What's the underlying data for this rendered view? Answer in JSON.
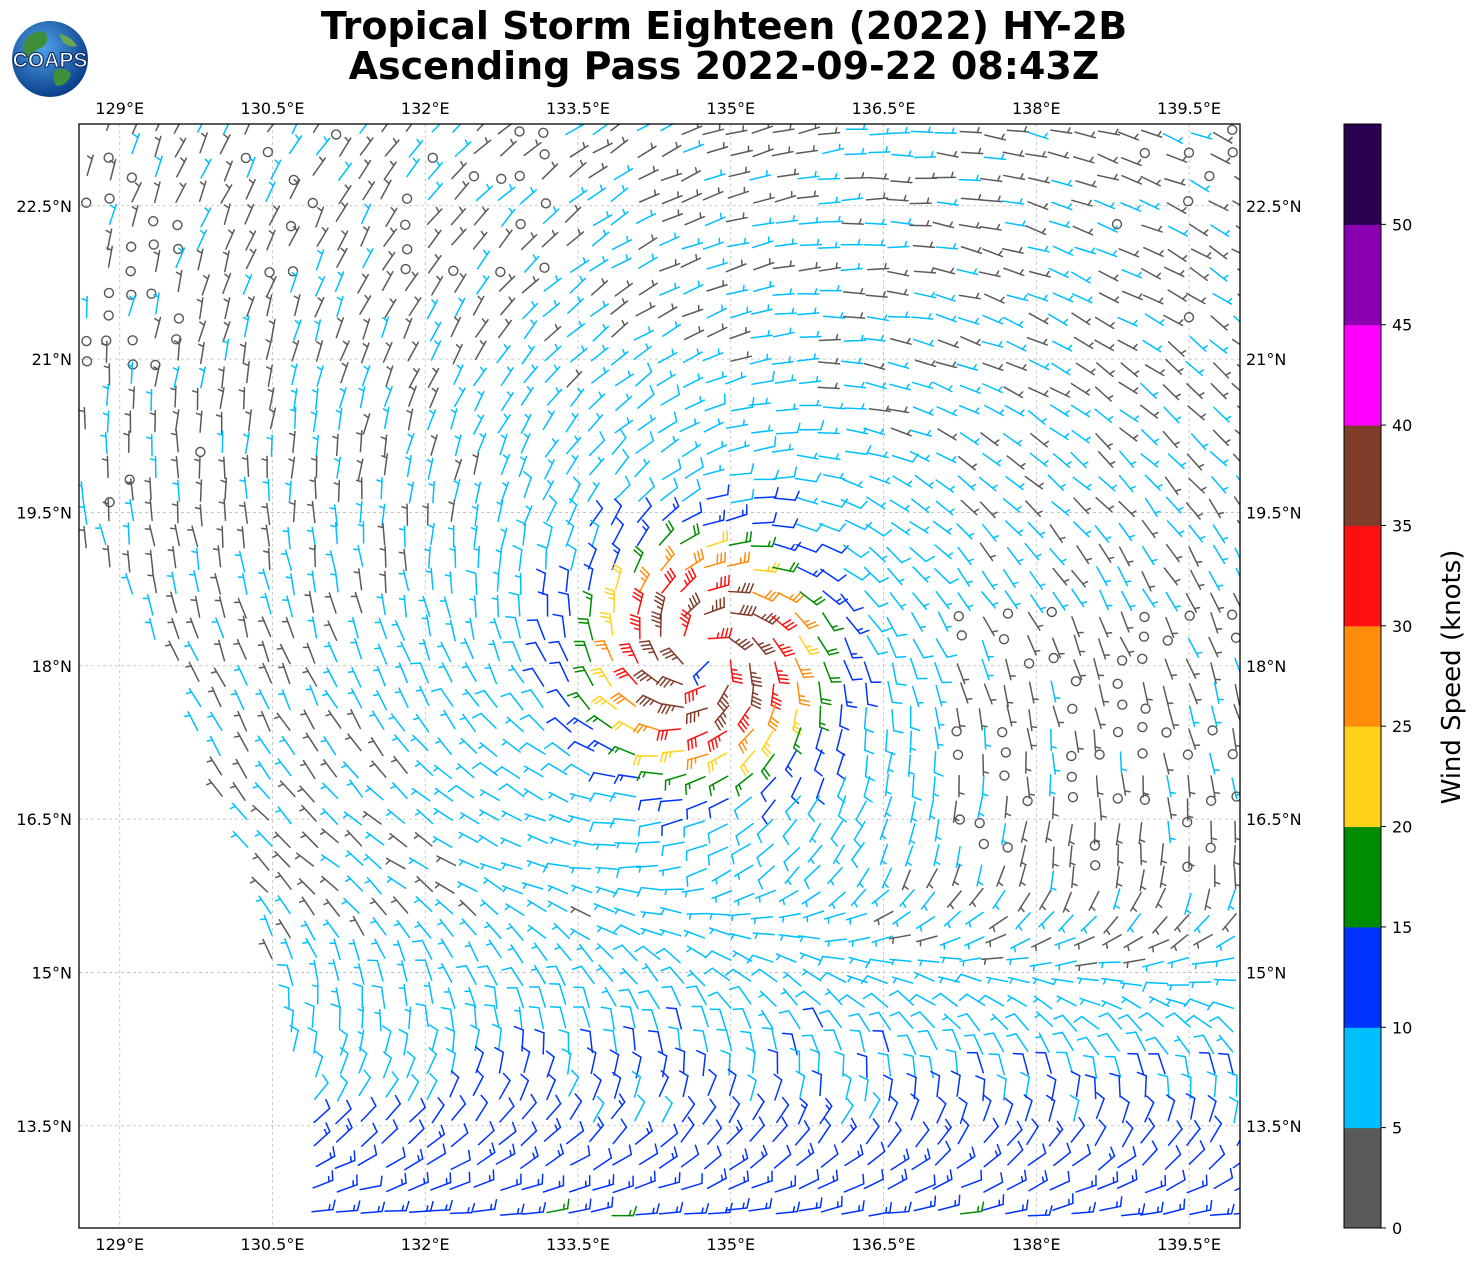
{
  "title": {
    "line1": "Tropical Storm Eighteen (2022) HY-2B",
    "line2": "Ascending Pass 2022-09-22 08:43Z"
  },
  "logo": {
    "text": "COAPS",
    "icon": "coaps-globe-logo"
  },
  "map": {
    "lon_range": [
      128.6,
      140.0
    ],
    "lat_range": [
      12.5,
      23.3
    ],
    "lon_ticks": [
      129,
      130.5,
      132,
      133.5,
      135,
      136.5,
      138,
      139.5
    ],
    "lon_tick_labels": [
      "129°E",
      "130.5°E",
      "132°E",
      "133.5°E",
      "135°E",
      "136.5°E",
      "138°E",
      "139.5°E"
    ],
    "lat_ticks": [
      13.5,
      15,
      16.5,
      18,
      19.5,
      21,
      22.5
    ],
    "lat_tick_labels": [
      "13.5°N",
      "15°N",
      "16.5°N",
      "18°N",
      "19.5°N",
      "21°N",
      "22.5°N"
    ],
    "gridlines": true,
    "barb_type": "wind barbs (knots)",
    "storm_center": {
      "lon": 134.75,
      "lat": 18.1
    },
    "swath_edge": {
      "description": "western swath edge",
      "points": [
        [
          128.7,
          19.0
        ],
        [
          129.5,
          17.9
        ],
        [
          130.2,
          16.1
        ],
        [
          130.8,
          13.6
        ],
        [
          130.8,
          12.5
        ]
      ]
    }
  },
  "colorbar": {
    "label": "Wind Speed (knots)",
    "tick_labels": [
      "0",
      "5",
      "10",
      "15",
      "20",
      "25",
      "30",
      "35",
      "40",
      "45",
      "50"
    ],
    "ticks": [
      0,
      5,
      10,
      15,
      20,
      25,
      30,
      35,
      40,
      45,
      50
    ],
    "range": [
      0,
      55
    ],
    "bins": [
      {
        "min": 0,
        "max": 5,
        "color": "#5a5a5a"
      },
      {
        "min": 5,
        "max": 10,
        "color": "#00bfff"
      },
      {
        "min": 10,
        "max": 15,
        "color": "#0033ff"
      },
      {
        "min": 15,
        "max": 20,
        "color": "#008c00"
      },
      {
        "min": 20,
        "max": 25,
        "color": "#ffd21a"
      },
      {
        "min": 25,
        "max": 30,
        "color": "#ff8c0a"
      },
      {
        "min": 30,
        "max": 35,
        "color": "#ff1010"
      },
      {
        "min": 35,
        "max": 40,
        "color": "#7f3d2a"
      },
      {
        "min": 40,
        "max": 45,
        "color": "#ff00ff"
      },
      {
        "min": 45,
        "max": 50,
        "color": "#8a00b0"
      },
      {
        "min": 50,
        "max": 55,
        "color": "#2a0050"
      }
    ]
  }
}
